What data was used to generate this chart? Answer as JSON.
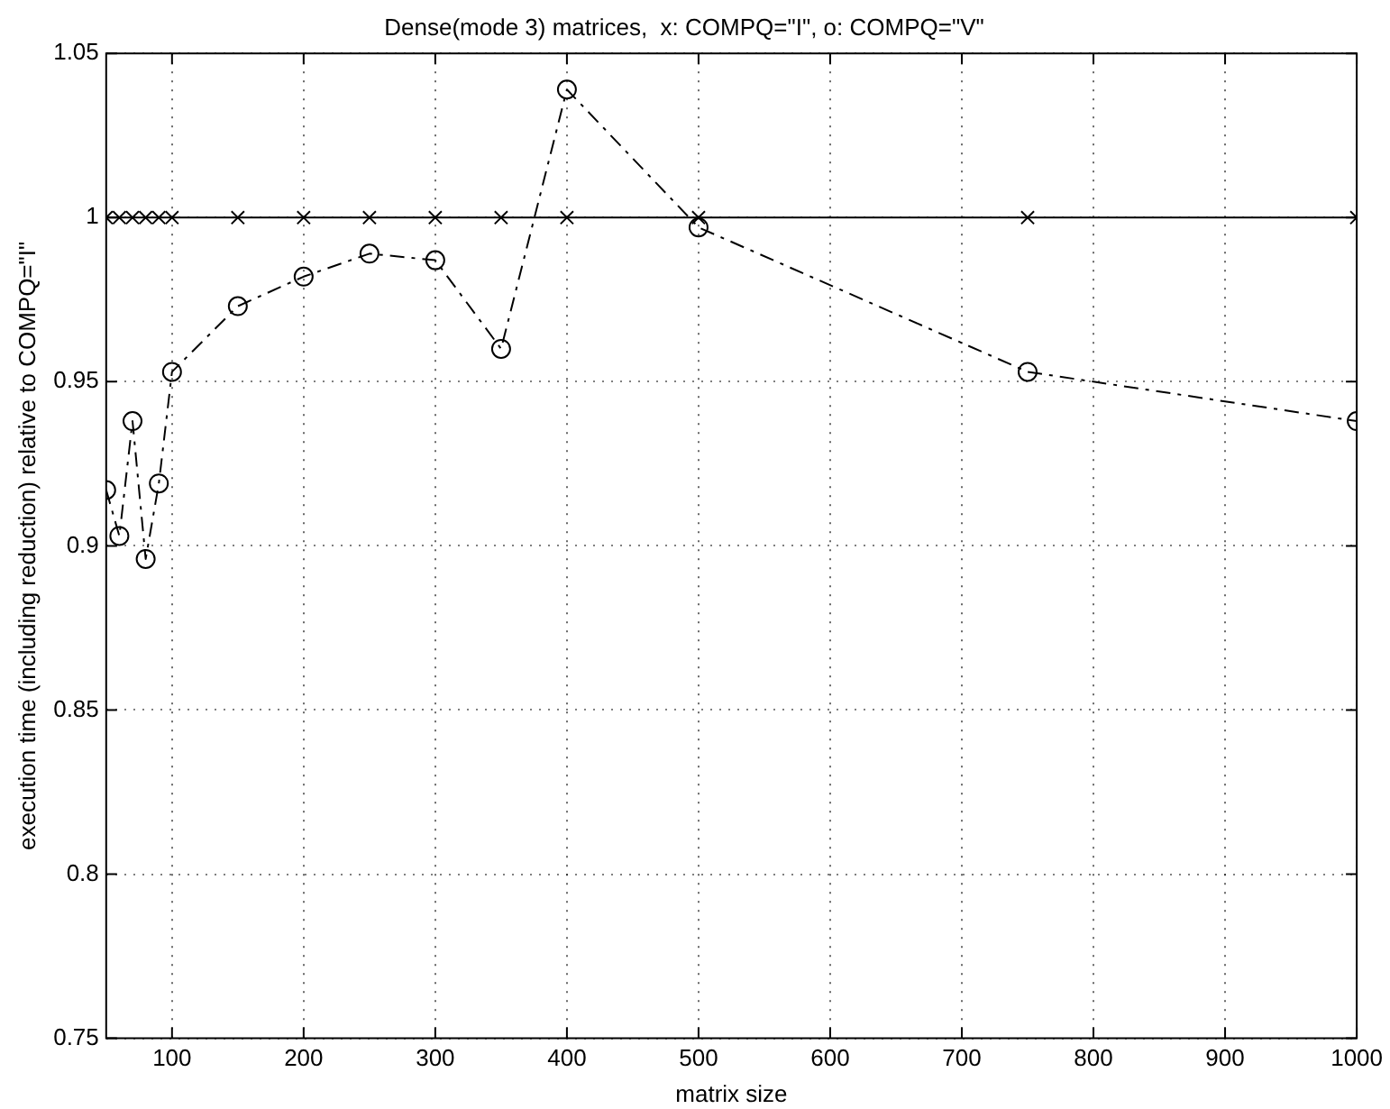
{
  "chart_data": {
    "type": "line",
    "title": "Dense(mode 3) matrices,  x: COMPQ=\"I\", o: COMPQ=\"V\"",
    "xlabel": "matrix size",
    "ylabel": "execution time (including reduction) relative to COMPQ=\"I\"",
    "x": [
      50,
      60,
      70,
      80,
      90,
      100,
      150,
      200,
      250,
      300,
      350,
      400,
      500,
      750,
      1000
    ],
    "series": [
      {
        "color": "#000000",
        "marker": "cross",
        "line_style": "solid",
        "values": [
          1,
          1,
          1,
          1,
          1,
          1,
          1,
          1,
          1,
          1,
          1,
          1,
          1,
          1,
          1
        ]
      },
      {
        "color": "#000000",
        "marker": "circle",
        "line_style": "dashed",
        "values": [
          0.917,
          0.903,
          0.938,
          0.896,
          0.919,
          0.953,
          0.973,
          0.982,
          0.989,
          0.987,
          0.96,
          1.039,
          0.997,
          0.953,
          0.938
        ]
      }
    ],
    "xlim": [
      50,
      1000
    ],
    "xticks": [
      100,
      200,
      300,
      400,
      500,
      600,
      700,
      800,
      900,
      1000
    ],
    "ylim": [
      0.75,
      1.05
    ],
    "yticks": [
      0.75,
      0.8,
      0.85,
      0.9,
      0.95,
      1,
      1.05
    ],
    "grid": true,
    "legend": false
  }
}
